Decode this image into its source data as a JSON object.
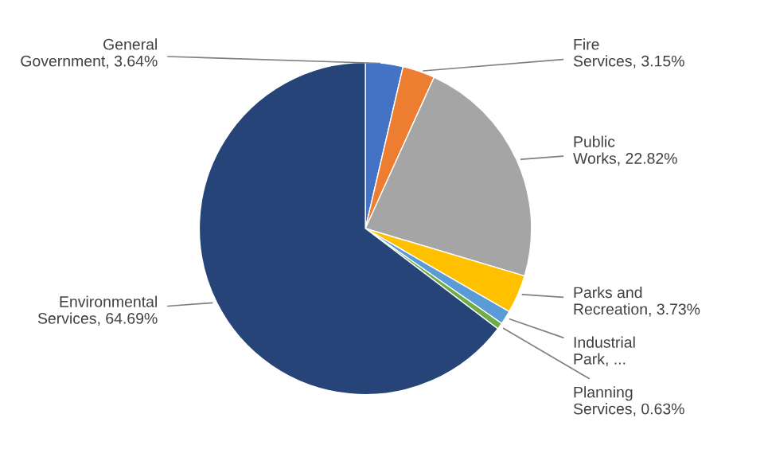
{
  "chart_data": {
    "type": "pie",
    "categories": [
      "General Government",
      "Fire Services",
      "Public Works",
      "Parks and Recreation",
      "Industrial Park",
      "Planning Services",
      "Environmental Services"
    ],
    "values": [
      3.64,
      3.15,
      22.82,
      3.73,
      1.34,
      0.63,
      64.69
    ],
    "value_labels": [
      "3.64%",
      "3.15%",
      "22.82%",
      "3.73%",
      "...",
      "0.63%",
      "64.69%"
    ],
    "colors": [
      "#4472c4",
      "#ed7d31",
      "#a5a5a5",
      "#ffc000",
      "#5b9bd5",
      "#70ad47",
      "#264478"
    ],
    "legend": false
  }
}
